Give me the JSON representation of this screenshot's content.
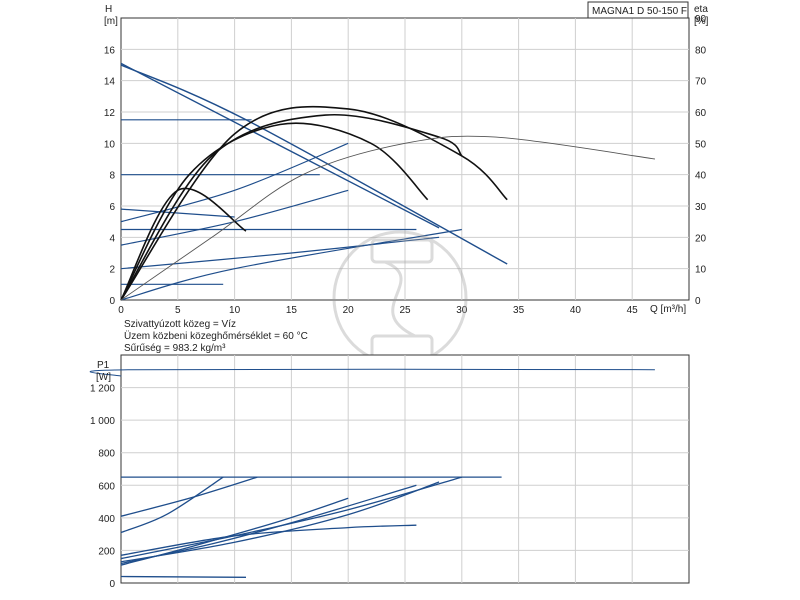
{
  "chart_data": [
    {
      "type": "line",
      "name": "head-efficiency",
      "model": "MAGNA1 D 50-150 F",
      "xlabel": "Q [m³/h]",
      "ylabel_left": "H",
      "ylabel_left_unit": "[m]",
      "ylabel_right": "eta",
      "ylabel_right_unit": "[%]",
      "xlim": [
        0,
        50
      ],
      "ylim_left": [
        0,
        18
      ],
      "ylim_right": [
        0,
        90
      ],
      "x_ticks": [
        "0",
        "5",
        "10",
        "15",
        "20",
        "25",
        "30",
        "35",
        "40",
        "45"
      ],
      "y_left_ticks": [
        "0",
        "2",
        "4",
        "6",
        "8",
        "10",
        "12",
        "14",
        "16"
      ],
      "y_right_ticks": [
        "0",
        "10",
        "20",
        "30",
        "40",
        "50",
        "60",
        "70",
        "80",
        "90"
      ],
      "grid": true,
      "notes": [
        "Szivattyúzott közeg = Víz",
        "Üzem közbeni közeghőmérséklet = 60 °C",
        "Sűrűség = 983.2 kg/m³"
      ],
      "pump_curves_H": [
        {
          "x": [
            0,
            11,
            34
          ],
          "y": [
            15,
            11.5,
            2.3
          ]
        },
        {
          "x": [
            0,
            28
          ],
          "y": [
            15.1,
            4.6
          ]
        }
      ],
      "const_curves_H": [
        {
          "x": [
            0,
            11.5
          ],
          "y": [
            11.5,
            11.5
          ]
        },
        {
          "x": [
            0,
            17.5
          ],
          "y": [
            8,
            8
          ]
        },
        {
          "x": [
            0,
            26
          ],
          "y": [
            4.5,
            4.5
          ]
        },
        {
          "x": [
            0,
            9
          ],
          "y": [
            1,
            1
          ]
        },
        {
          "x": [
            0,
            10,
            20
          ],
          "y": [
            5,
            7,
            10
          ]
        },
        {
          "x": [
            0,
            10,
            20
          ],
          "y": [
            3.5,
            5,
            7
          ]
        },
        {
          "x": [
            0,
            15,
            28
          ],
          "y": [
            2,
            3,
            4
          ]
        },
        {
          "x": [
            0,
            10,
            30
          ],
          "y": [
            0,
            2,
            4.5
          ]
        },
        {
          "x": [
            0,
            10
          ],
          "y": [
            5.8,
            5.3
          ]
        }
      ],
      "eta_curves": [
        {
          "x": [
            0,
            10,
            20,
            30,
            34
          ],
          "y": [
            0,
            53,
            61,
            46,
            32
          ]
        },
        {
          "x": [
            0,
            8,
            18,
            28,
            30
          ],
          "y": [
            0,
            46,
            59,
            52,
            46
          ]
        },
        {
          "x": [
            0,
            6,
            14,
            22,
            27
          ],
          "y": [
            0,
            40,
            56,
            50,
            32
          ]
        },
        {
          "x": [
            0,
            5,
            11
          ],
          "y": [
            0,
            35,
            22
          ]
        },
        {
          "x": [
            0,
            8,
            16,
            25,
            33,
            47
          ],
          "y": [
            0,
            20,
            40,
            50,
            52,
            45
          ]
        }
      ]
    },
    {
      "type": "line",
      "name": "power",
      "ylabel": "P1",
      "ylabel_unit": "[W]",
      "xlim": [
        0,
        50
      ],
      "ylim": [
        0,
        1400
      ],
      "y_ticks": [
        "0",
        "200",
        "400",
        "600",
        "800",
        "1 000",
        "1 200"
      ],
      "grid": true,
      "series": [
        {
          "x": [
            0,
            1,
            47
          ],
          "y": [
            1270,
            1310,
            1310
          ]
        },
        {
          "x": [
            0,
            33.5
          ],
          "y": [
            650,
            650
          ]
        },
        {
          "x": [
            0,
            10,
            20,
            30
          ],
          "y": [
            150,
            290,
            450,
            650
          ]
        },
        {
          "x": [
            0,
            10,
            20,
            28
          ],
          "y": [
            130,
            250,
            420,
            620
          ]
        },
        {
          "x": [
            0,
            8,
            16,
            26
          ],
          "y": [
            120,
            240,
            390,
            600
          ]
        },
        {
          "x": [
            0,
            6,
            14,
            20
          ],
          "y": [
            110,
            220,
            380,
            520
          ]
        },
        {
          "x": [
            0,
            10,
            20,
            26
          ],
          "y": [
            170,
            290,
            340,
            355
          ]
        },
        {
          "x": [
            0,
            11
          ],
          "y": [
            40,
            35
          ]
        },
        {
          "x": [
            0,
            6,
            12
          ],
          "y": [
            410,
            520,
            650
          ]
        },
        {
          "x": [
            0,
            4,
            9
          ],
          "y": [
            310,
            420,
            650
          ]
        }
      ]
    }
  ]
}
